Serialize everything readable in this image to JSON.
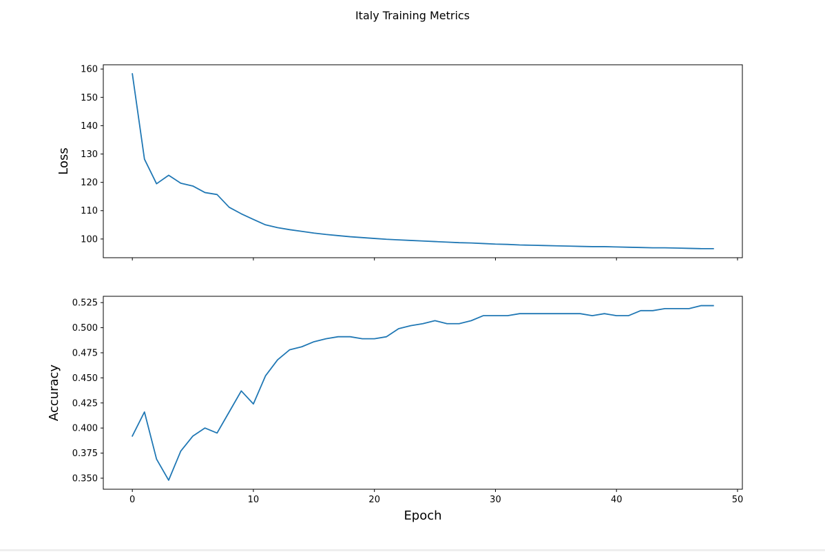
{
  "figure": {
    "title": "Italy Training Metrics",
    "xlabel": "Epoch",
    "line_color": "#1f77b4"
  },
  "chart_data": [
    {
      "type": "line",
      "ylabel": "Loss",
      "xlim": [
        -2.4,
        50.4
      ],
      "ylim": [
        93.4,
        161.5
      ],
      "xticks": [
        0,
        10,
        20,
        30,
        40,
        50
      ],
      "yticks": [
        100,
        110,
        120,
        130,
        140,
        150,
        160
      ],
      "ytick_labels": [
        "100",
        "110",
        "120",
        "130",
        "140",
        "150",
        "160"
      ],
      "show_xtick_labels": false,
      "grid": false,
      "series": [
        {
          "x": [
            0,
            1,
            2,
            3,
            4,
            5,
            6,
            7,
            8,
            9,
            10,
            11,
            12,
            13,
            14,
            15,
            16,
            17,
            18,
            19,
            20,
            21,
            22,
            23,
            24,
            25,
            26,
            27,
            28,
            29,
            30,
            31,
            32,
            33,
            34,
            35,
            36,
            37,
            38,
            39,
            40,
            41,
            42,
            43,
            44,
            45,
            46,
            47,
            48
          ],
          "y": [
            158.3,
            128.2,
            119.5,
            122.5,
            119.7,
            118.7,
            116.4,
            115.7,
            111.2,
            108.9,
            106.9,
            105.0,
            104.0,
            103.3,
            102.7,
            102.1,
            101.6,
            101.2,
            100.8,
            100.5,
            100.2,
            99.9,
            99.7,
            99.5,
            99.3,
            99.1,
            98.9,
            98.7,
            98.6,
            98.4,
            98.2,
            98.1,
            97.9,
            97.8,
            97.7,
            97.6,
            97.5,
            97.4,
            97.3,
            97.3,
            97.2,
            97.1,
            97.0,
            96.9,
            96.9,
            96.8,
            96.7,
            96.6,
            96.6
          ]
        }
      ]
    },
    {
      "type": "line",
      "ylabel": "Accuracy",
      "xlabel": "Epoch",
      "xlim": [
        -2.4,
        50.4
      ],
      "ylim": [
        0.339,
        0.5313
      ],
      "xticks": [
        0,
        10,
        20,
        30,
        40,
        50
      ],
      "xtick_labels": [
        "0",
        "10",
        "20",
        "30",
        "40",
        "50"
      ],
      "yticks": [
        0.35,
        0.375,
        0.4,
        0.425,
        0.45,
        0.475,
        0.5,
        0.525
      ],
      "ytick_labels": [
        "0.350",
        "0.375",
        "0.400",
        "0.425",
        "0.450",
        "0.475",
        "0.500",
        "0.525"
      ],
      "show_xtick_labels": true,
      "grid": false,
      "series": [
        {
          "x": [
            0,
            1,
            2,
            3,
            4,
            5,
            6,
            7,
            8,
            9,
            10,
            11,
            12,
            13,
            14,
            15,
            16,
            17,
            18,
            19,
            20,
            21,
            22,
            23,
            24,
            25,
            26,
            27,
            28,
            29,
            30,
            31,
            32,
            33,
            34,
            35,
            36,
            37,
            38,
            39,
            40,
            41,
            42,
            43,
            44,
            45,
            46,
            47,
            48
          ],
          "y": [
            0.392,
            0.416,
            0.369,
            0.348,
            0.377,
            0.392,
            0.4,
            0.395,
            0.416,
            0.437,
            0.424,
            0.452,
            0.468,
            0.478,
            0.481,
            0.486,
            0.489,
            0.491,
            0.491,
            0.489,
            0.489,
            0.491,
            0.499,
            0.502,
            0.504,
            0.507,
            0.504,
            0.504,
            0.507,
            0.512,
            0.512,
            0.512,
            0.514,
            0.514,
            0.514,
            0.514,
            0.514,
            0.514,
            0.512,
            0.514,
            0.512,
            0.512,
            0.517,
            0.517,
            0.519,
            0.519,
            0.519,
            0.522,
            0.522
          ]
        }
      ]
    }
  ]
}
